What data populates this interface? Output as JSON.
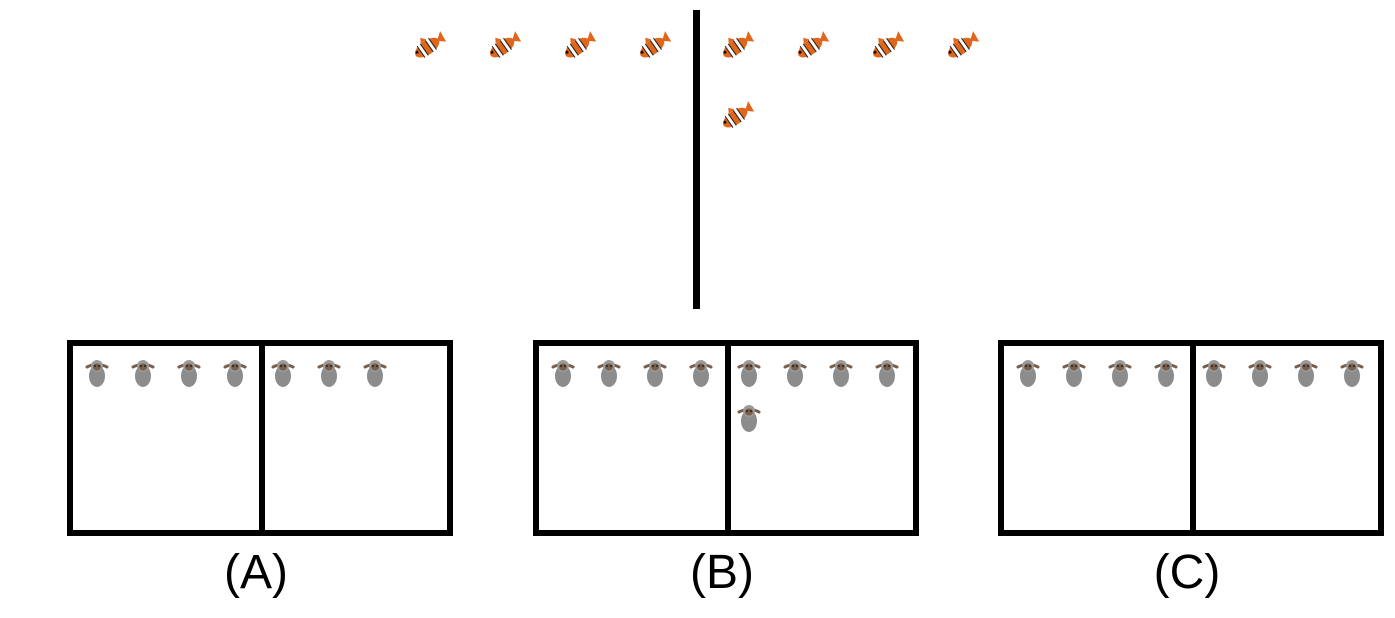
{
  "top": {
    "icon": "clownfish-icon",
    "left_group_count": 4,
    "right_group_count": 5
  },
  "options": [
    {
      "label": "(A)",
      "icon": "sloth-icon",
      "left_count": 4,
      "right_count": 3
    },
    {
      "label": "(B)",
      "icon": "sloth-icon",
      "left_count": 4,
      "right_count": 5
    },
    {
      "label": "(C)",
      "icon": "sloth-icon",
      "left_count": 4,
      "right_count": 4
    }
  ],
  "colors": {
    "fish_orange": "#e0661c",
    "fish_white": "#ffffff",
    "sloth_gray": "#8c8c8c",
    "sloth_face": "#7a5e4a",
    "line": "#000000"
  }
}
